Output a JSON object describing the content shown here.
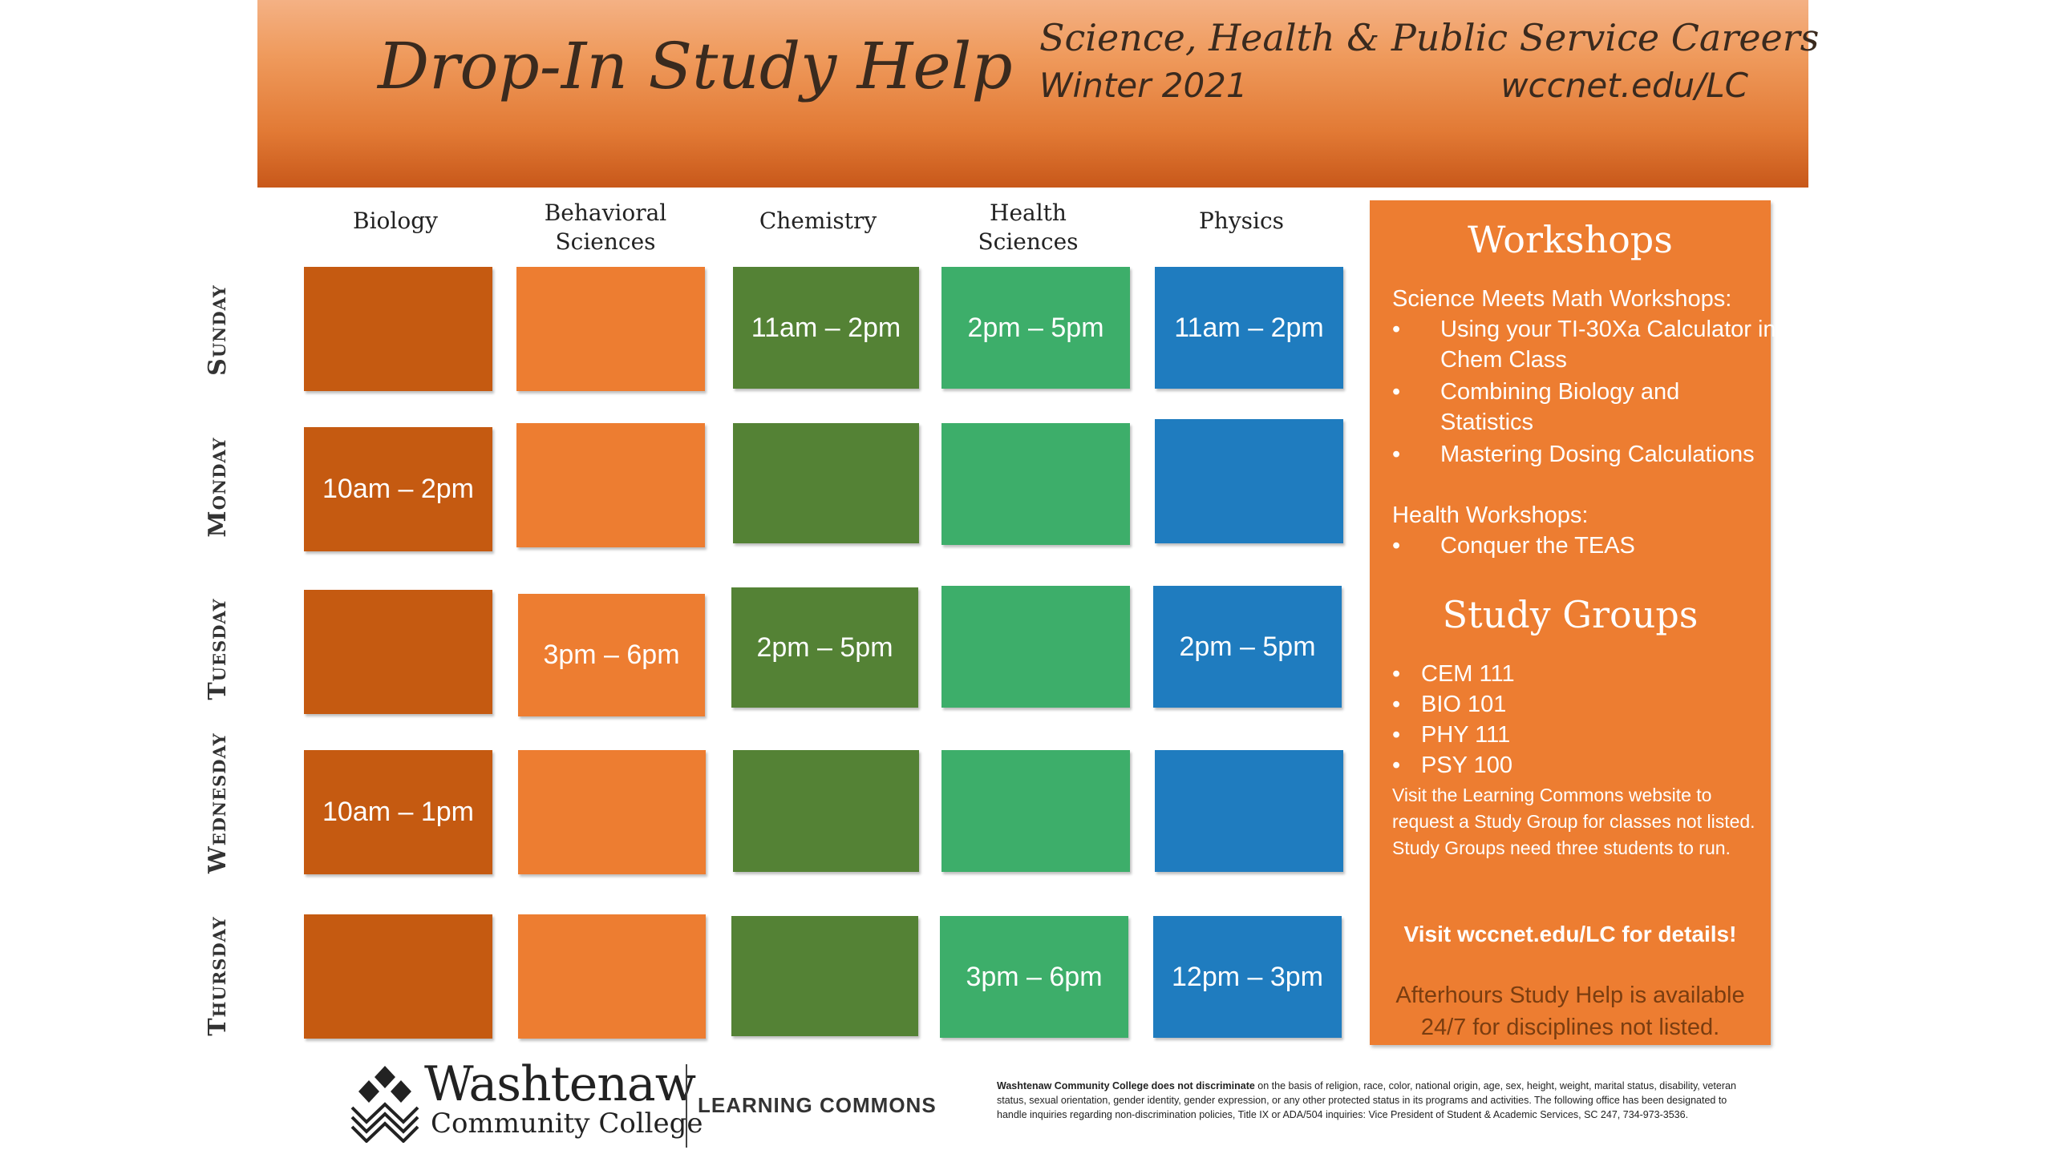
{
  "header": {
    "title": "Drop-In Study Help",
    "subtitle": "Science, Health & Public Service Careers",
    "term": "Winter 2021",
    "site": "wccnet.edu/LC"
  },
  "columns": [
    "Biology",
    "Behavioral Sciences",
    "Chemistry",
    "Health Sciences",
    "Physics"
  ],
  "days": [
    "Sunday",
    "Monday",
    "Tuesday",
    "Wednesday",
    "Thursday"
  ],
  "schedule": {
    "sunday": {
      "biology": "",
      "behavioral": "",
      "chemistry": "11am – 2pm",
      "health": "2pm – 5pm",
      "physics": "11am – 2pm"
    },
    "monday": {
      "biology": "10am – 2pm",
      "behavioral": "",
      "chemistry": "",
      "health": "",
      "physics": ""
    },
    "tuesday": {
      "biology": "",
      "behavioral": "3pm – 6pm",
      "chemistry": "2pm – 5pm",
      "health": "",
      "physics": "2pm – 5pm"
    },
    "wednesday": {
      "biology": "10am – 1pm",
      "behavioral": "",
      "chemistry": "",
      "health": "",
      "physics": ""
    },
    "thursday": {
      "biology": "",
      "behavioral": "",
      "chemistry": "",
      "health": "3pm – 6pm",
      "physics": "12pm – 3pm"
    }
  },
  "colors": {
    "biology": "#c55a11",
    "behavioral": "#ed7d31",
    "chemistry": "#548235",
    "health": "#3dae6a",
    "physics": "#1f7cbf",
    "panel": "#ed7d31"
  },
  "panel": {
    "workshops_title": "Workshops",
    "science_math_label": "Science Meets Math Workshops:",
    "science_math_items": [
      [
        "Using your TI-30Xa Calculator in",
        "Chem Class"
      ],
      [
        "Combining Biology and",
        "Statistics"
      ],
      [
        "Mastering Dosing Calculations"
      ]
    ],
    "health_label": "Health Workshops:",
    "health_items": [
      "Conquer the TEAS"
    ],
    "study_groups_title": "Study Groups",
    "study_groups": [
      "CEM 111",
      "BIO 101",
      "PHY 111",
      "PSY 100"
    ],
    "note_lines": [
      "Visit the Learning Commons website to",
      "request a Study Group for classes not listed.",
      "Study Groups need three students to run."
    ],
    "visit": "Visit wccnet.edu/LC for details!",
    "afterhours_lines": [
      "Afterhours Study Help is available",
      "24/7 for disciplines not listed."
    ]
  },
  "footer": {
    "college_name": "Washtenaw",
    "college_sub": "Community College",
    "learning_commons": "LEARNING COMMONS",
    "disclaimer_bold": "Washtenaw Community College does not discriminate",
    "disclaimer_rest": "on the basis of religion, race, color, national origin, age, sex, height, weight, marital status, disability, veteran status, sexual orientation, gender identity, gender expression, or any other protected status in its programs and activities. The following office has been designated to handle inquiries regarding non-discrimination policies, Title IX or ADA/504 inquiries: Vice President of Student & Academic Services, SC 247, 734-973-3536."
  },
  "bullet": "•"
}
